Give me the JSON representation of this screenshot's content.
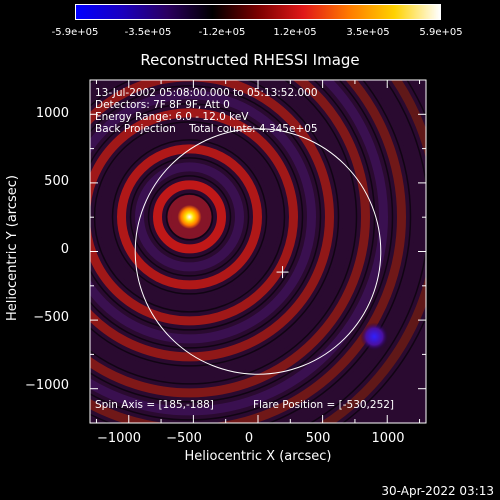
{
  "colorbar": {
    "ticks": [
      "-5.9e+05",
      "-3.5e+05",
      "-1.2e+05",
      "1.2e+05",
      "3.5e+05",
      "5.9e+05"
    ],
    "stops": [
      "#0000ff",
      "#1a00c0",
      "#2a0060",
      "#000000",
      "#7a0000",
      "#e01818",
      "#ff7a00",
      "#ffd200",
      "#ffffff"
    ]
  },
  "chart_data": {
    "type": "heatmap",
    "title": "Reconstructed RHESSI Image",
    "xlabel": "Heliocentric X (arcsec)",
    "ylabel": "Heliocentric Y (arcsec)",
    "xlim": [
      -1300,
      1300
    ],
    "ylim": [
      -1250,
      1250
    ],
    "xticks": [
      -1000,
      -500,
      0,
      500,
      1000
    ],
    "yticks": [
      1000,
      500,
      0,
      -500,
      -1000
    ],
    "xtick_labels": [
      "−1000",
      "−500",
      "0",
      "500",
      "1000"
    ],
    "ytick_labels": [
      "1000",
      "500",
      "0",
      "−500",
      "−1000"
    ],
    "source_position": [
      -530,
      252
    ],
    "negative_source_position": [
      900,
      -620
    ],
    "solar_disk_radius": 950,
    "sun_center_marker": [
      190,
      -150
    ],
    "annotations": {
      "line1": "13-Jul-2002 05:08:00.000 to 05:13:52.000",
      "line2": "Detectors: 7F 8F 9F, Att 0",
      "line3": "Energy Range: 6.0 - 12.0 keV",
      "line4": "Back Projection    Total counts: 4.345e+05",
      "spin_axis": "Spin Axis = [185,-188]",
      "flare_position": "Flare Position = [-530,252]"
    }
  },
  "timestamp": "30-Apr-2022 03:13"
}
